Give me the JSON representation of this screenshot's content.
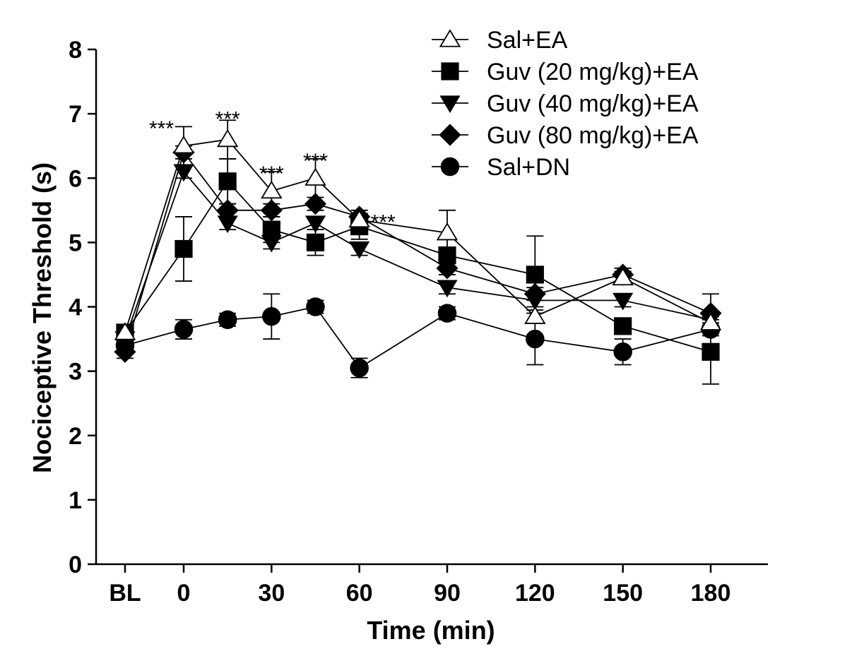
{
  "chart_data": {
    "type": "line",
    "title": "",
    "xlabel": "Time (min)",
    "ylabel": "Nociceptive Threshold (s)",
    "ylim": [
      0,
      8
    ],
    "yticks": [
      0,
      1,
      2,
      3,
      4,
      5,
      6,
      7,
      8
    ],
    "x": [
      "BL",
      0,
      15,
      30,
      45,
      60,
      90,
      120,
      150,
      180
    ],
    "xtick_labels": [
      "BL",
      "0",
      "30",
      "60",
      "90",
      "120",
      "150",
      "180"
    ],
    "xtick_positions": [
      "BL",
      0,
      30,
      60,
      90,
      120,
      150,
      180
    ],
    "legend_position": "top-right",
    "series": [
      {
        "name": "Sal+EA",
        "marker": "triangle-up-open",
        "values": [
          3.6,
          6.5,
          6.6,
          5.8,
          6.0,
          5.35,
          5.15,
          3.85,
          4.45,
          3.75
        ],
        "errors": [
          0.1,
          0.3,
          0.3,
          0.3,
          0.3,
          0.1,
          0.35,
          0.1,
          0.1,
          0.1
        ]
      },
      {
        "name": "Guv (20 mg/kg)+EA",
        "marker": "square",
        "values": [
          3.6,
          4.9,
          5.95,
          5.2,
          5.0,
          5.25,
          4.8,
          4.5,
          3.7,
          3.3
        ],
        "errors": [
          0.1,
          0.5,
          0.35,
          0.2,
          0.2,
          0.2,
          0.1,
          0.6,
          0.1,
          0.5
        ]
      },
      {
        "name": "Guv (40 mg/kg)+EA",
        "marker": "triangle-down",
        "values": [
          3.5,
          6.1,
          5.3,
          5.0,
          5.3,
          4.9,
          4.3,
          4.1,
          4.1,
          3.8
        ],
        "errors": [
          0.1,
          0.1,
          0.1,
          0.1,
          0.1,
          0.1,
          0.1,
          0.1,
          0.1,
          0.1
        ]
      },
      {
        "name": "Guv (80 mg/kg)+EA",
        "marker": "diamond",
        "values": [
          3.3,
          6.4,
          5.5,
          5.5,
          5.6,
          5.4,
          4.6,
          4.2,
          4.5,
          3.9
        ],
        "errors": [
          0.1,
          0.1,
          0.1,
          0.1,
          0.1,
          0.1,
          0.1,
          0.1,
          0.1,
          0.3
        ]
      },
      {
        "name": "Sal+DN",
        "marker": "circle",
        "values": [
          3.4,
          3.65,
          3.8,
          3.85,
          4.0,
          3.05,
          3.9,
          3.5,
          3.3,
          3.65
        ],
        "errors": [
          0.1,
          0.15,
          0.1,
          0.35,
          0.1,
          0.15,
          0.1,
          0.4,
          0.2,
          0.1
        ]
      }
    ],
    "annotations": [
      {
        "text": "***",
        "x": 0,
        "y": 6.9
      },
      {
        "text": "***",
        "x": 15,
        "y": 7.05
      },
      {
        "text": "***",
        "x": 30,
        "y": 6.2
      },
      {
        "text": "***",
        "x": 45,
        "y": 6.4
      },
      {
        "text": "***",
        "x": 60,
        "y": 5.45
      }
    ]
  }
}
